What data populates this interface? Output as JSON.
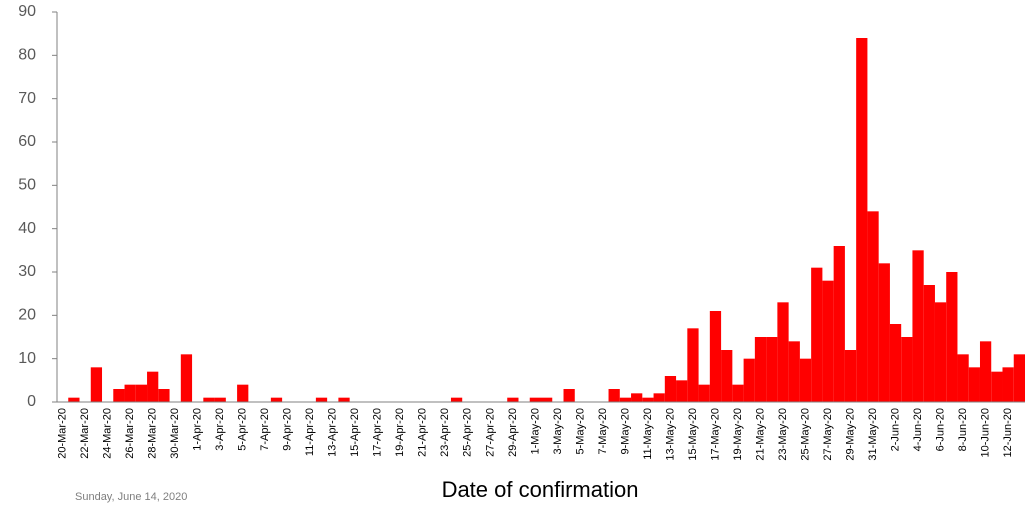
{
  "chart_data": {
    "type": "bar",
    "x_label": "Date of confirmation",
    "footer": "Sunday, June 14, 2020",
    "color": "#ff0000",
    "categories": [
      "20-Mar-20",
      null,
      "22-Mar-20",
      null,
      "24-Mar-20",
      null,
      "26-Mar-20",
      null,
      "28-Mar-20",
      null,
      "30-Mar-20",
      null,
      "1-Apr-20",
      null,
      "3-Apr-20",
      null,
      "5-Apr-20",
      null,
      "7-Apr-20",
      null,
      "9-Apr-20",
      null,
      "11-Apr-20",
      null,
      "13-Apr-20",
      null,
      "15-Apr-20",
      null,
      "17-Apr-20",
      null,
      "19-Apr-20",
      null,
      "21-Apr-20",
      null,
      "23-Apr-20",
      null,
      "25-Apr-20",
      null,
      "27-Apr-20",
      null,
      "29-Apr-20",
      null,
      "1-May-20",
      null,
      "3-May-20",
      null,
      "5-May-20",
      null,
      "7-May-20",
      null,
      "9-May-20",
      null,
      "11-May-20",
      null,
      "13-May-20",
      null,
      "15-May-20",
      null,
      "17-May-20",
      null,
      "19-May-20",
      null,
      "21-May-20",
      null,
      "23-May-20",
      null,
      "25-May-20",
      null,
      "27-May-20",
      null,
      "29-May-20",
      null,
      "31-May-20",
      null,
      "2-Jun-20",
      null,
      "4-Jun-20",
      null,
      "6-Jun-20",
      null,
      "8-Jun-20",
      null,
      "10-Jun-20",
      null,
      "12-Jun-20",
      null
    ],
    "values": [
      0,
      1,
      0,
      8,
      0,
      3,
      4,
      4,
      7,
      3,
      0,
      11,
      0,
      1,
      1,
      0,
      4,
      0,
      0,
      1,
      0,
      0,
      0,
      1,
      0,
      1,
      0,
      0,
      0,
      0,
      0,
      0,
      0,
      0,
      0,
      1,
      0,
      0,
      0,
      0,
      1,
      0,
      1,
      1,
      0,
      3,
      0,
      0,
      0,
      3,
      1,
      2,
      1,
      2,
      6,
      5,
      17,
      4,
      21,
      12,
      4,
      10,
      15,
      15,
      23,
      14,
      10,
      31,
      28,
      36,
      12,
      84,
      44,
      32,
      18,
      15,
      35,
      27,
      23,
      30,
      11,
      8,
      14,
      7,
      8,
      11
    ],
    "ylim": [
      0,
      90
    ],
    "yticks": [
      0,
      10,
      20,
      30,
      40,
      50,
      60,
      70,
      80,
      90
    ],
    "grid": false
  }
}
